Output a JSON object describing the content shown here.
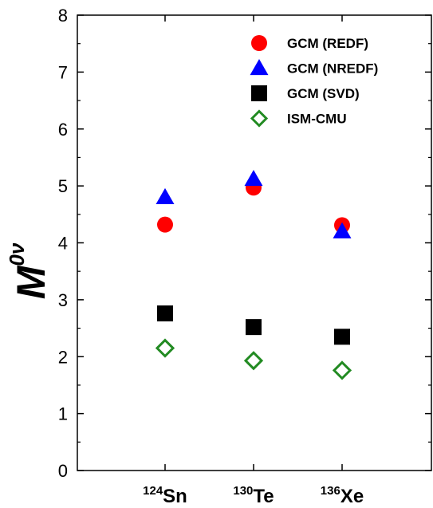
{
  "chart_data": {
    "type": "scatter",
    "ylabel": {
      "main": "M",
      "sup": "0ν"
    },
    "ylim": [
      0,
      8
    ],
    "yticks": [
      "0",
      "1",
      "2",
      "3",
      "4",
      "5",
      "6",
      "7",
      "8"
    ],
    "grid": false,
    "legend_position": "top-right",
    "categories": [
      {
        "sup": "124",
        "main": "Sn"
      },
      {
        "sup": "130",
        "main": "Te"
      },
      {
        "sup": "136",
        "main": "Xe"
      }
    ],
    "series": [
      {
        "name": "GCM (REDF)",
        "marker": "circle",
        "color": "#ff0000",
        "fill": true,
        "values": [
          4.32,
          4.97,
          4.31
        ]
      },
      {
        "name": "GCM (NREDF)",
        "marker": "triangle",
        "color": "#0000ff",
        "fill": true,
        "values": [
          4.8,
          5.12,
          4.2
        ]
      },
      {
        "name": "GCM (SVD)",
        "marker": "square",
        "color": "#000000",
        "fill": true,
        "values": [
          2.76,
          2.52,
          2.35
        ]
      },
      {
        "name": "ISM-CMU",
        "marker": "diamond",
        "color": "#228b22",
        "fill": false,
        "values": [
          2.15,
          1.93,
          1.76
        ]
      }
    ]
  }
}
